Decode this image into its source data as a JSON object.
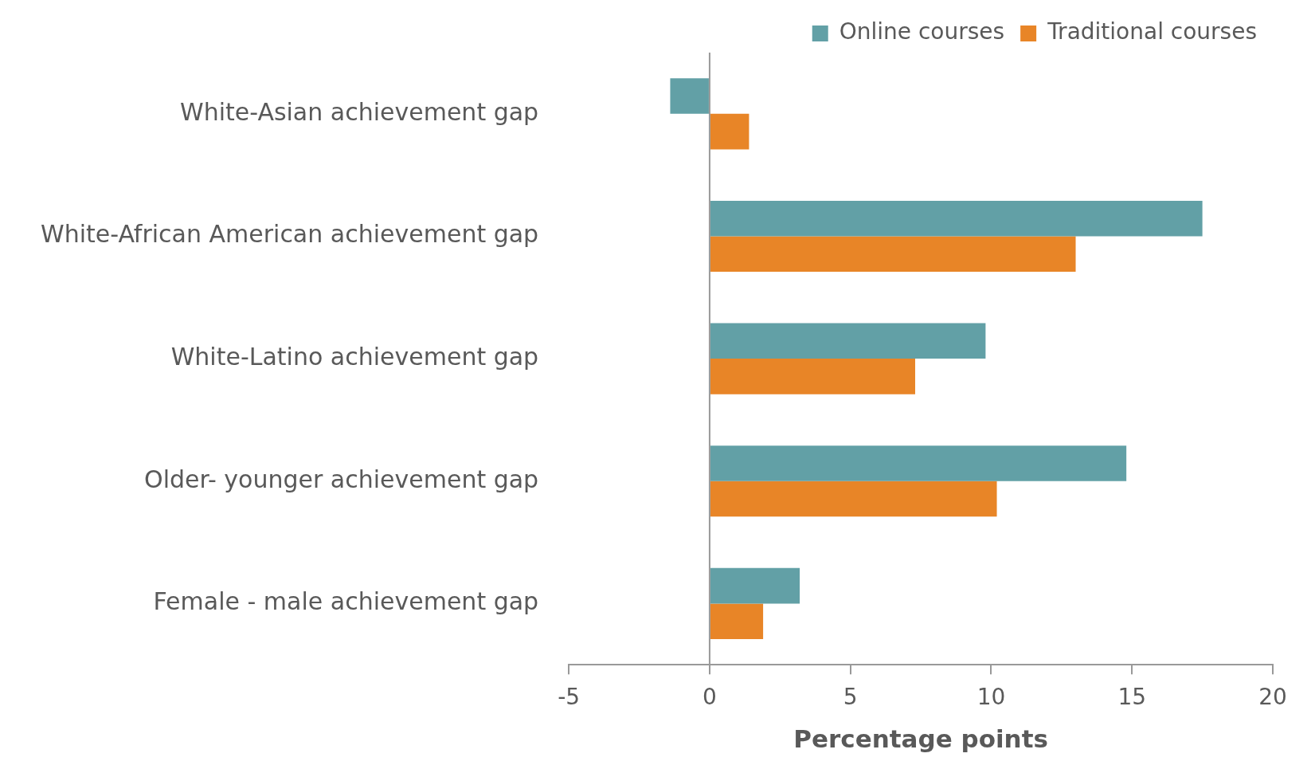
{
  "chart_data": {
    "type": "bar",
    "orientation": "horizontal",
    "xlabel": "Percentage points",
    "categories": [
      "White-Asian achievement gap",
      "White-African American achievement gap",
      "White-Latino achievement gap",
      "Older- younger achievement gap",
      "Female - male achievement gap"
    ],
    "series": [
      {
        "name": "Online courses",
        "color": "#62a0a6",
        "values": [
          -1.4,
          17.5,
          9.8,
          14.8,
          3.2
        ]
      },
      {
        "name": "Traditional courses",
        "color": "#e88527",
        "values": [
          1.4,
          13.0,
          7.3,
          10.2,
          1.9
        ]
      }
    ],
    "ref_lines": [
      {
        "axis": "x",
        "value": 0,
        "color": "#999999"
      }
    ],
    "xlim": [
      -5,
      20
    ],
    "xticks": [
      -5,
      0,
      5,
      10,
      15,
      20
    ],
    "grid": false,
    "legend": "top right"
  }
}
